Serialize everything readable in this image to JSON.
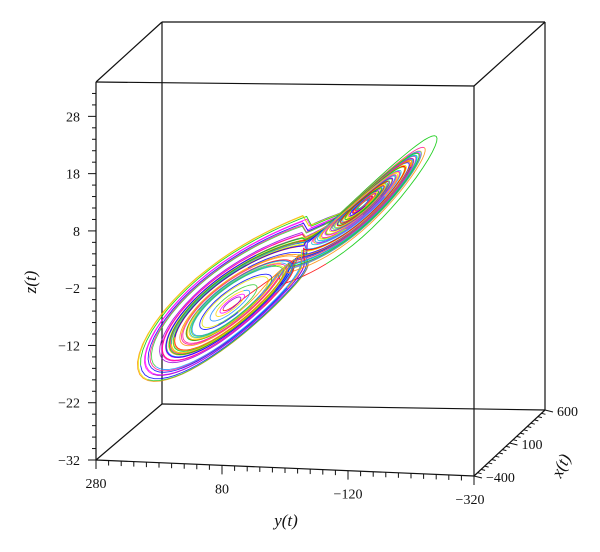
{
  "chart_data": {
    "type": "line",
    "plot_kind": "3d-trajectory",
    "title": "",
    "xlabel": "y(t)",
    "ylabel": "z(t)",
    "zlabel": "x(t)",
    "axes": {
      "y": {
        "label": "y(t)",
        "range": [
          280,
          -320
        ],
        "ticks": [
          {
            "value": 280,
            "label": "280"
          },
          {
            "value": 80,
            "label": "80"
          },
          {
            "value": -120,
            "label": "−120"
          },
          {
            "value": -320,
            "label": "−320"
          }
        ]
      },
      "z": {
        "label": "z(t)",
        "range": [
          -32,
          34
        ],
        "ticks": [
          {
            "value": 28,
            "label": "28"
          },
          {
            "value": 18,
            "label": "18"
          },
          {
            "value": 8,
            "label": "8"
          },
          {
            "value": -2,
            "label": "−2"
          },
          {
            "value": -12,
            "label": "−12"
          },
          {
            "value": -22,
            "label": "−22"
          },
          {
            "value": -32,
            "label": "−32"
          }
        ]
      },
      "x": {
        "label": "x(t)",
        "range": [
          -400,
          600
        ],
        "ticks": [
          {
            "value": 600,
            "label": "600"
          },
          {
            "value": 100,
            "label": "100"
          },
          {
            "value": -400,
            "label": "−400"
          }
        ]
      }
    },
    "grid": false,
    "legend": "none",
    "series_colors": [
      "#e8e800",
      "#00bcd4",
      "#ff1493",
      "#ff8c00",
      "#0000ff",
      "#00c800",
      "#ff0000",
      "#9400d3",
      "#ff00ff",
      "#ffd700",
      "#1e90ff",
      "#32cd32"
    ]
  }
}
